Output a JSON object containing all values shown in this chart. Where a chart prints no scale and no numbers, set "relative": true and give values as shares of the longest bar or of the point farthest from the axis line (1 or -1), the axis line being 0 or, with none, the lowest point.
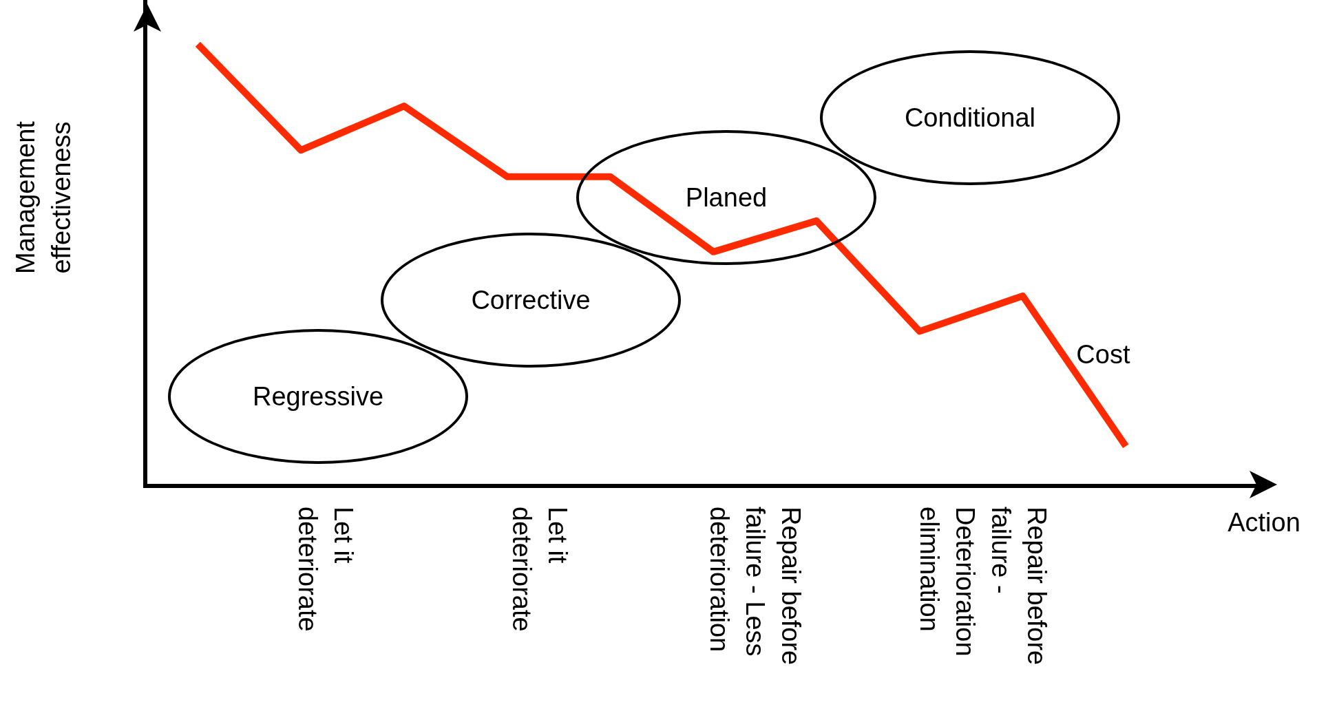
{
  "chart_data": {
    "type": "line",
    "relative": true,
    "xlabel": "Action",
    "ylabel": "Management effectiveness",
    "categories": [
      null,
      null,
      null,
      null,
      null,
      null,
      null,
      null,
      null,
      null
    ],
    "series": [
      {
        "name": "Cost",
        "color": "#ff2a00",
        "values": [
          1,
          0.76,
          0.86,
          0.7,
          0.7,
          0.53,
          0.6,
          0.35,
          0.43,
          0.09
        ]
      }
    ],
    "annotations": [
      "Regressive",
      "Corrective",
      "Planed",
      "Conditional",
      "Let it deteriorate",
      "Let it deteriorate",
      "Repair before failure - Less deterioration",
      "Repair before failure - Deterioration elimination"
    ],
    "grid": false,
    "legend": false,
    "marker": "none",
    "line_style": "solid"
  }
}
